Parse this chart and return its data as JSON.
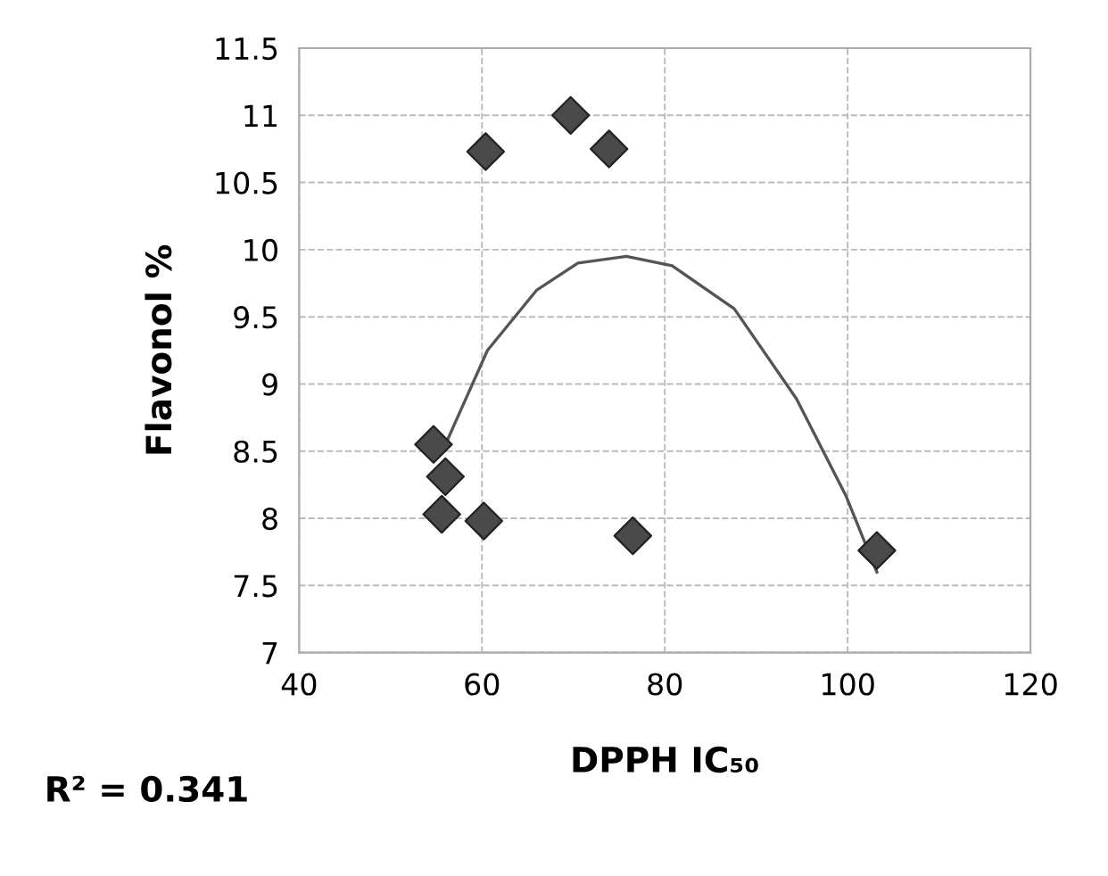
{
  "chart_data": {
    "type": "scatter",
    "xlabel": "DPPH IC₅₀",
    "ylabel": "Flavonol %",
    "annotations": [
      "R² = 0.341"
    ],
    "xlim": [
      40,
      120
    ],
    "xticks": [
      40,
      60,
      80,
      100,
      120
    ],
    "ylim": [
      7,
      11.5
    ],
    "yticks": [
      7,
      7.5,
      8,
      8.5,
      9,
      9.5,
      10,
      10.5,
      11,
      11.5
    ],
    "grid": true,
    "legend": false,
    "series": [
      {
        "color": "#4a4a4a",
        "marker": "diamond",
        "x": [
          60.4,
          69.7,
          73.9,
          54.7,
          56.0,
          55.6,
          60.2,
          76.5,
          103.2
        ],
        "values": [
          10.73,
          11.0,
          10.75,
          8.55,
          8.31,
          8.03,
          7.98,
          7.87,
          7.76
        ]
      },
      {
        "type": "line",
        "color": "#555555",
        "marker": "none",
        "x": [
          56.2,
          60.6,
          66,
          70.5,
          75.8,
          80.8,
          87.6,
          94.4,
          99.8,
          103.2
        ],
        "values": [
          8.58,
          9.25,
          9.7,
          9.9,
          9.95,
          9.88,
          9.56,
          8.89,
          8.17,
          7.6
        ]
      }
    ]
  }
}
